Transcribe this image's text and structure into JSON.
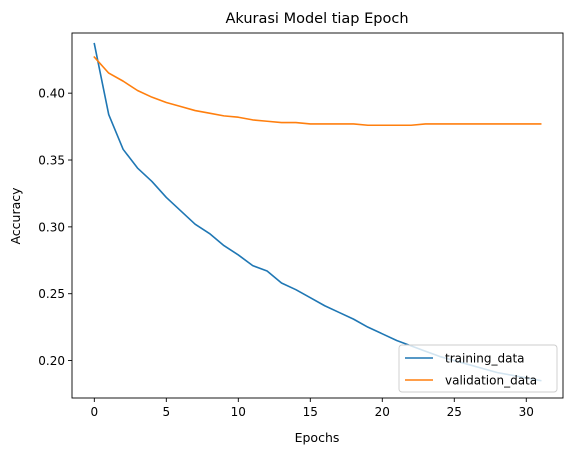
{
  "chart_data": {
    "type": "line",
    "title": "Akurasi Model tiap Epoch",
    "xlabel": "Epochs",
    "ylabel": "Accuracy",
    "xlim": [
      -1.55,
      32.55
    ],
    "ylim": [
      0.172,
      0.445
    ],
    "xticks": [
      0,
      5,
      10,
      15,
      20,
      25,
      30
    ],
    "yticks": [
      0.2,
      0.25,
      0.3,
      0.35,
      0.4
    ],
    "ytick_labels": [
      "0.20",
      "0.25",
      "0.30",
      "0.35",
      "0.40"
    ],
    "grid": false,
    "legend_position": "lower right",
    "x": [
      0,
      1,
      2,
      3,
      4,
      5,
      6,
      7,
      8,
      9,
      10,
      11,
      12,
      13,
      14,
      15,
      16,
      17,
      18,
      19,
      20,
      21,
      22,
      23,
      24,
      25,
      26,
      27,
      28,
      29,
      30,
      31
    ],
    "series": [
      {
        "name": "training_data",
        "color": "#1f77b4",
        "values": [
          0.437,
          0.384,
          0.358,
          0.344,
          0.334,
          0.322,
          0.312,
          0.302,
          0.295,
          0.286,
          0.279,
          0.271,
          0.267,
          0.258,
          0.253,
          0.247,
          0.241,
          0.236,
          0.231,
          0.225,
          0.22,
          0.215,
          0.211,
          0.207,
          0.203,
          0.2,
          0.197,
          0.194,
          0.191,
          0.189,
          0.187,
          0.185
        ]
      },
      {
        "name": "validation_data",
        "color": "#ff7f0e",
        "values": [
          0.427,
          0.415,
          0.409,
          0.402,
          0.397,
          0.393,
          0.39,
          0.387,
          0.385,
          0.383,
          0.382,
          0.38,
          0.379,
          0.378,
          0.378,
          0.377,
          0.377,
          0.377,
          0.377,
          0.376,
          0.376,
          0.376,
          0.376,
          0.377,
          0.377,
          0.377,
          0.377,
          0.377,
          0.377,
          0.377,
          0.377,
          0.377
        ]
      }
    ]
  }
}
